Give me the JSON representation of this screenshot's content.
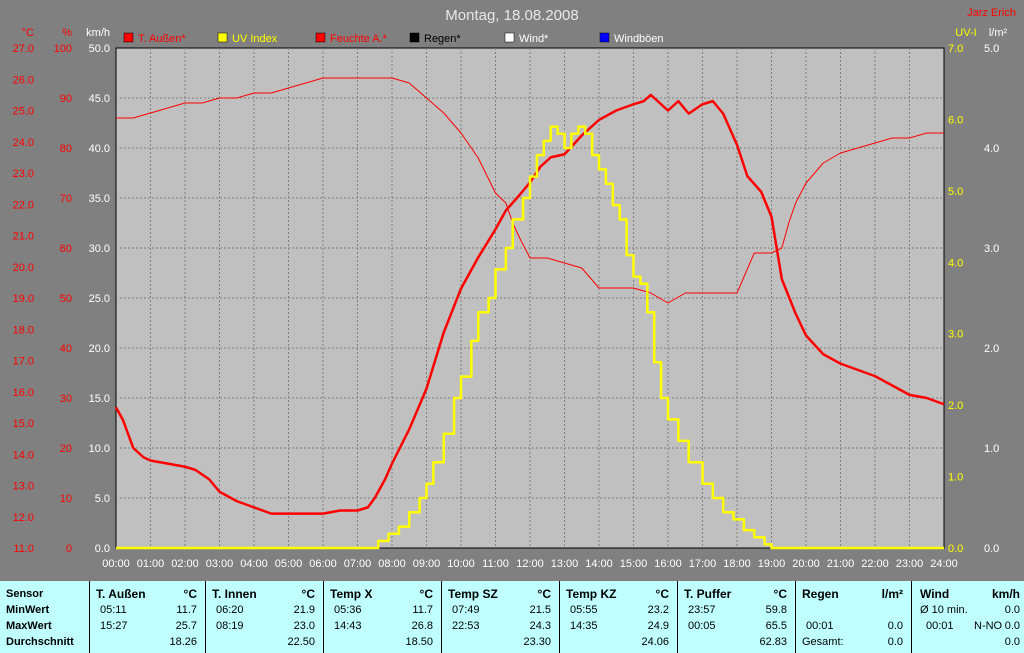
{
  "chart_data": {
    "type": "line",
    "title": "Montag, 18.08.2008",
    "author": "Jarz Erich",
    "left_axes": [
      {
        "unit": "°C",
        "color": "#ff0000",
        "ticks": [
          "27.0",
          "26.0",
          "25.0",
          "24.0",
          "23.0",
          "22.0",
          "21.0",
          "20.0",
          "19.0",
          "18.0",
          "17.0",
          "16.0",
          "15.0",
          "14.0",
          "13.0",
          "12.0",
          "11.0"
        ],
        "ylim": [
          11,
          27
        ]
      },
      {
        "unit": "%",
        "color": "#ff0000",
        "ticks": [
          "100",
          "90",
          "80",
          "70",
          "60",
          "50",
          "40",
          "30",
          "20",
          "10",
          "0"
        ],
        "ylim": [
          0,
          100
        ]
      },
      {
        "unit": "km/h",
        "color": "#ffffff",
        "ticks": [
          "50.0",
          "45.0",
          "40.0",
          "35.0",
          "30.0",
          "25.0",
          "20.0",
          "15.0",
          "10.0",
          "5.0",
          "0.0"
        ],
        "ylim": [
          0,
          50
        ]
      }
    ],
    "right_axes": [
      {
        "unit": "UV-I",
        "color": "#ffff00",
        "ticks": [
          "7.0",
          "6.0",
          "5.0",
          "4.0",
          "3.0",
          "2.0",
          "1.0",
          "0.0"
        ],
        "ylim": [
          0,
          7
        ]
      },
      {
        "unit": "l/m²",
        "color": "#ffffff",
        "ticks": [
          "5.0",
          "4.0",
          "3.0",
          "2.0",
          "1.0",
          "0.0"
        ],
        "ylim": [
          0,
          5
        ]
      }
    ],
    "x_ticks": [
      "00:00",
      "01:00",
      "02:00",
      "03:00",
      "04:00",
      "05:00",
      "06:00",
      "07:00",
      "08:00",
      "09:00",
      "10:00",
      "11:00",
      "12:00",
      "13:00",
      "14:00",
      "15:00",
      "16:00",
      "17:00",
      "18:00",
      "19:00",
      "20:00",
      "21:00",
      "22:00",
      "23:00",
      "24:00"
    ],
    "legend": [
      {
        "label": "T. Außen*",
        "color": "#ff0000"
      },
      {
        "label": "UV Index",
        "color": "#ffff00"
      },
      {
        "label": "Feuchte A.*",
        "color": "#ff0000"
      },
      {
        "label": "Regen*",
        "color": "#000000"
      },
      {
        "label": "Wind*",
        "color": "#ffffff"
      },
      {
        "label": "Windböen",
        "color": "#0000ff"
      }
    ],
    "series": [
      {
        "name": "T. Außen*",
        "unit": "°C",
        "color": "#ff0000",
        "x": [
          0,
          0.2,
          0.5,
          0.8,
          1,
          1.5,
          2,
          2.3,
          2.7,
          3,
          3.5,
          4,
          4.5,
          5,
          5.2,
          5.5,
          6,
          6.5,
          7,
          7.3,
          7.5,
          7.8,
          8,
          8.5,
          9,
          9.5,
          10,
          10.5,
          11,
          11.3,
          11.7,
          12,
          12.3,
          12.6,
          13,
          13.5,
          14,
          14.5,
          15,
          15.3,
          15.5,
          15.8,
          16,
          16.3,
          16.6,
          17,
          17.3,
          17.6,
          18,
          18.3,
          18.7,
          19,
          19.3,
          19.7,
          20,
          20.5,
          21,
          21.5,
          22,
          22.5,
          23,
          23.5,
          24
        ],
        "y": [
          15.5,
          15.1,
          14.2,
          13.9,
          13.8,
          13.7,
          13.6,
          13.5,
          13.2,
          12.8,
          12.5,
          12.3,
          12.1,
          12.1,
          12.1,
          12.1,
          12.1,
          12.2,
          12.2,
          12.3,
          12.6,
          13.2,
          13.7,
          14.8,
          16.1,
          17.9,
          19.3,
          20.3,
          21.2,
          21.8,
          22.3,
          22.7,
          23.2,
          23.5,
          23.6,
          24.2,
          24.7,
          25.0,
          25.2,
          25.3,
          25.5,
          25.2,
          25.0,
          25.3,
          24.9,
          25.2,
          25.3,
          24.9,
          23.9,
          22.9,
          22.4,
          21.6,
          19.6,
          18.5,
          17.8,
          17.2,
          16.9,
          16.7,
          16.5,
          16.2,
          15.9,
          15.8,
          15.6
        ]
      },
      {
        "name": "Feuchte A.*",
        "unit": "%",
        "color": "#ff0000",
        "x": [
          0,
          0.5,
          1,
          1.5,
          2,
          2.5,
          3,
          3.5,
          4,
          4.5,
          5,
          5.5,
          6,
          6.5,
          7,
          7.5,
          8,
          8.5,
          9,
          9.5,
          10,
          10.5,
          11,
          11.3,
          11.5,
          11.7,
          12,
          12.5,
          13,
          13.5,
          14,
          14.5,
          15,
          15.5,
          16,
          16.5,
          17,
          17.5,
          18,
          18.5,
          19,
          19.3,
          19.5,
          19.7,
          20,
          20.5,
          21,
          21.5,
          22,
          22.5,
          23,
          23.5,
          24
        ],
        "y": [
          86,
          86,
          87,
          88,
          89,
          89,
          90,
          90,
          91,
          91,
          92,
          93,
          94,
          94,
          94,
          94,
          94,
          93,
          90,
          87,
          83,
          78,
          71,
          69,
          65,
          62,
          58,
          58,
          57,
          56,
          52,
          52,
          52,
          51,
          49,
          51,
          51,
          51,
          51,
          59,
          59,
          60,
          65,
          69,
          73,
          77,
          79,
          80,
          81,
          82,
          82,
          83,
          83
        ]
      },
      {
        "name": "UV Index",
        "unit": "UV-I",
        "color": "#ffff00",
        "x": [
          0,
          7.5,
          7.6,
          7.9,
          8.2,
          8.5,
          8.8,
          9,
          9.2,
          9.5,
          9.8,
          10,
          10.3,
          10.5,
          10.8,
          11,
          11.3,
          11.5,
          11.8,
          12,
          12.2,
          12.4,
          12.6,
          12.8,
          13,
          13.2,
          13.4,
          13.6,
          13.8,
          14,
          14.2,
          14.4,
          14.6,
          14.8,
          15,
          15.2,
          15.4,
          15.6,
          15.8,
          16,
          16.3,
          16.6,
          17,
          17.3,
          17.6,
          17.9,
          18.2,
          18.5,
          18.8,
          19,
          24
        ],
        "y": [
          0,
          0,
          0.1,
          0.2,
          0.3,
          0.5,
          0.7,
          0.9,
          1.2,
          1.6,
          2.1,
          2.4,
          2.9,
          3.3,
          3.5,
          3.9,
          4.2,
          4.6,
          4.9,
          5.2,
          5.5,
          5.7,
          5.9,
          5.8,
          5.6,
          5.8,
          5.9,
          5.8,
          5.5,
          5.3,
          5.1,
          4.8,
          4.6,
          4.1,
          3.8,
          3.7,
          3.3,
          2.6,
          2.1,
          1.8,
          1.5,
          1.2,
          0.9,
          0.7,
          0.5,
          0.4,
          0.25,
          0.15,
          0.05,
          0,
          0
        ]
      }
    ]
  },
  "stats": {
    "sensor": {
      "header": "Sensor",
      "min": "MinWert",
      "max": "MaxWert",
      "avg": "Durchschnitt"
    },
    "columns": [
      {
        "name": "T. Außen",
        "unit": "°C",
        "min_time": "05:11",
        "min_val": "11.7",
        "max_time": "15:27",
        "max_val": "25.7",
        "avg": "18.26"
      },
      {
        "name": "T. Innen",
        "unit": "°C",
        "min_time": "06:20",
        "min_val": "21.9",
        "max_time": "08:19",
        "max_val": "23.0",
        "avg": "22.50"
      },
      {
        "name": "Temp X",
        "unit": "°C",
        "min_time": "05:36",
        "min_val": "11.7",
        "max_time": "14:43",
        "max_val": "26.8",
        "avg": "18.50"
      },
      {
        "name": "Temp SZ",
        "unit": "°C",
        "min_time": "07:49",
        "min_val": "21.5",
        "max_time": "22:53",
        "max_val": "24.3",
        "avg": "23.30"
      },
      {
        "name": "Temp KZ",
        "unit": "°C",
        "min_time": "05:55",
        "min_val": "23.2",
        "max_time": "14:35",
        "max_val": "24.9",
        "avg": "24.06"
      },
      {
        "name": "T. Puffer",
        "unit": "°C",
        "min_time": "23:57",
        "min_val": "59.8",
        "max_time": "00:05",
        "max_val": "65.5",
        "avg": "62.83"
      }
    ],
    "regen": {
      "name": "Regen",
      "unit": "l/m²",
      "max_time": "00:01",
      "max_val": "0.0",
      "total_label": "Gesamt:",
      "total_val": "0.0"
    },
    "wind": {
      "name": "Wind",
      "unit": "km/h",
      "avg_label": "Ø 10 min.",
      "avg_val": "0.0",
      "max_time": "00:01",
      "max_dir": "N-NO",
      "max_val": "0.0",
      "avg": "0.0"
    }
  }
}
